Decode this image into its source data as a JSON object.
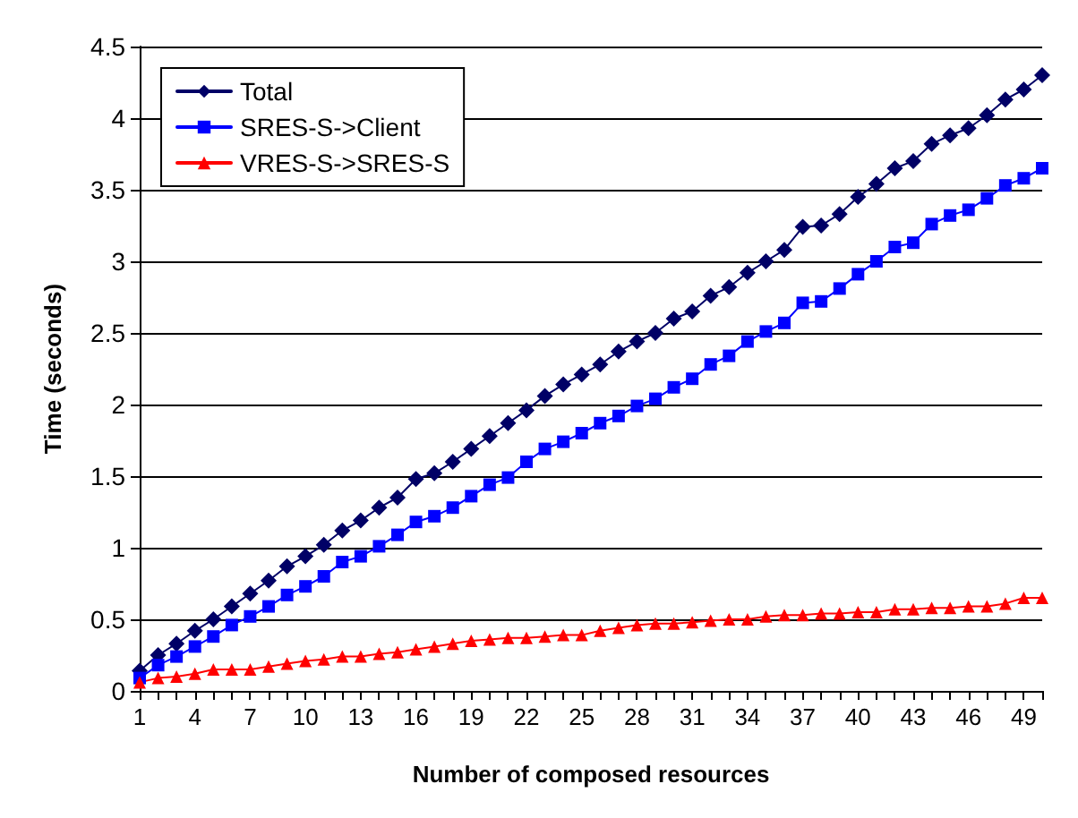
{
  "chart_data": {
    "type": "line",
    "xlabel": "Number of composed resources",
    "ylabel": "Time (seconds)",
    "categories": [
      "1",
      null,
      null,
      "4",
      null,
      null,
      "7",
      null,
      null,
      "10",
      null,
      null,
      "13",
      null,
      null,
      "16",
      null,
      null,
      "19",
      null,
      null,
      "22",
      null,
      null,
      "25",
      null,
      null,
      "28",
      null,
      null,
      "31",
      null,
      null,
      "34",
      null,
      null,
      "37",
      null,
      null,
      "40",
      null,
      null,
      "43",
      null,
      null,
      "46",
      null,
      null,
      "49",
      null
    ],
    "series": [
      {
        "name": "Total",
        "color": "#000066",
        "marker": "diamond",
        "values": [
          0.14,
          0.25,
          0.33,
          0.42,
          0.5,
          0.59,
          0.68,
          0.77,
          0.87,
          0.94,
          1.02,
          1.12,
          1.19,
          1.28,
          1.35,
          1.48,
          1.52,
          1.6,
          1.69,
          1.78,
          1.87,
          1.96,
          2.06,
          2.14,
          2.21,
          2.28,
          2.37,
          2.44,
          2.5,
          2.6,
          2.65,
          2.76,
          2.82,
          2.92,
          3.0,
          3.08,
          3.24,
          3.25,
          3.33,
          3.45,
          3.54,
          3.65,
          3.7,
          3.82,
          3.88,
          3.93,
          4.02,
          4.13,
          4.2,
          4.3
        ]
      },
      {
        "name": "SRES-S->Client",
        "color": "#0000ff",
        "marker": "square",
        "values": [
          0.09,
          0.18,
          0.24,
          0.31,
          0.38,
          0.46,
          0.52,
          0.59,
          0.67,
          0.73,
          0.8,
          0.9,
          0.94,
          1.01,
          1.09,
          1.18,
          1.22,
          1.28,
          1.36,
          1.44,
          1.49,
          1.6,
          1.69,
          1.74,
          1.8,
          1.87,
          1.92,
          1.99,
          2.04,
          2.12,
          2.18,
          2.28,
          2.34,
          2.44,
          2.51,
          2.57,
          2.71,
          2.72,
          2.81,
          2.91,
          3.0,
          3.1,
          3.13,
          3.26,
          3.32,
          3.36,
          3.44,
          3.53,
          3.58,
          3.65
        ]
      },
      {
        "name": "VRES-S->SRES-S",
        "color": "#ff0000",
        "marker": "triangle",
        "values": [
          0.06,
          0.09,
          0.1,
          0.12,
          0.15,
          0.15,
          0.15,
          0.17,
          0.19,
          0.21,
          0.22,
          0.24,
          0.24,
          0.26,
          0.27,
          0.29,
          0.31,
          0.33,
          0.35,
          0.36,
          0.37,
          0.37,
          0.38,
          0.39,
          0.39,
          0.42,
          0.44,
          0.46,
          0.47,
          0.47,
          0.48,
          0.49,
          0.5,
          0.5,
          0.52,
          0.53,
          0.53,
          0.54,
          0.54,
          0.55,
          0.55,
          0.57,
          0.57,
          0.58,
          0.58,
          0.59,
          0.59,
          0.61,
          0.65,
          0.65
        ]
      }
    ],
    "ylim": [
      0,
      4.5
    ],
    "yticks": [
      0,
      0.5,
      1,
      1.5,
      2,
      2.5,
      3,
      3.5,
      4,
      4.5
    ],
    "grid": "y",
    "legend": "top left",
    "line_style": "solid"
  }
}
